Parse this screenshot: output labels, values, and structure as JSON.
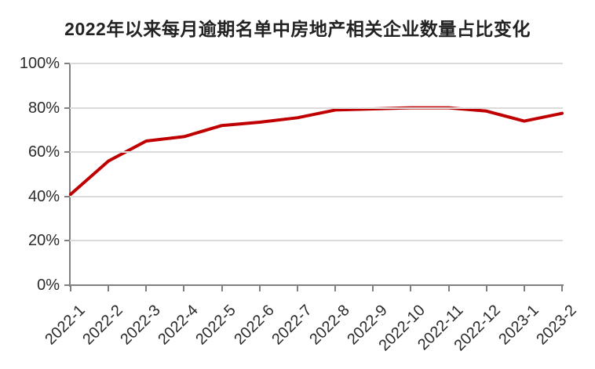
{
  "chart_data": {
    "type": "line",
    "title": "2022年以来每月逾期名单中房地产相关企业数量占比变化",
    "categories": [
      "2022-1",
      "2022-2",
      "2022-3",
      "2022-4",
      "2022-5",
      "2022-6",
      "2022-7",
      "2022-8",
      "2022-9",
      "2022-10",
      "2022-11",
      "2022-12",
      "2023-1",
      "2023-2"
    ],
    "values": [
      41,
      56,
      65,
      67,
      72,
      73.5,
      75.5,
      79,
      79.5,
      80,
      80,
      78.5,
      74,
      77.5
    ],
    "unit": "%",
    "xlabel": "",
    "ylabel": "",
    "ylim": [
      0,
      100
    ],
    "y_tick_step": 20,
    "y_tick_labels": [
      "0%",
      "20%",
      "40%",
      "60%",
      "80%",
      "100%"
    ],
    "grid": true,
    "legend": "none"
  },
  "colors": {
    "line": "#C00000",
    "grid": "#DBDBDB",
    "axis": "#808080",
    "title_text": "#222222",
    "tick_text": "#2B2B2B",
    "background": "#FFFFFF"
  }
}
